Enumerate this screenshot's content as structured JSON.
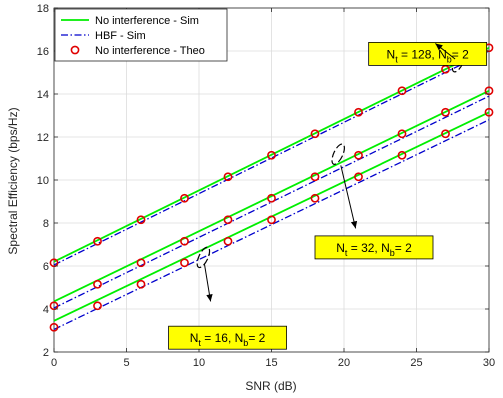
{
  "chart_data": {
    "type": "line",
    "xlabel": "SNR (dB)",
    "ylabel": "Spectral Efficiency (bps/Hz)",
    "xlim": [
      0,
      30
    ],
    "ylim": [
      2,
      18
    ],
    "xticks": [
      0,
      5,
      10,
      15,
      20,
      25,
      30
    ],
    "yticks": [
      2,
      4,
      6,
      8,
      10,
      12,
      14,
      16,
      18
    ],
    "grid": true,
    "legend": {
      "placement": "top-left",
      "entries": [
        {
          "label": "No interference - Sim",
          "color": "#00ee00",
          "style": "solid"
        },
        {
          "label": "HBF - Sim",
          "color": "#0000cc",
          "style": "dashdot"
        },
        {
          "label": "No interference - Theo",
          "color": "#e00000",
          "style": "circle"
        }
      ]
    },
    "groups": [
      {
        "nt": "128",
        "nb": "2",
        "sim": {
          "x": [
            0,
            30
          ],
          "y": [
            6.2,
            16.15
          ]
        },
        "hbf": {
          "x": [
            0,
            30
          ],
          "y": [
            6.05,
            16.0
          ]
        },
        "theo": {
          "x": [
            0,
            3,
            6,
            9,
            12,
            15,
            18,
            21,
            24,
            27,
            30
          ],
          "y": [
            6.15,
            7.15,
            8.15,
            9.15,
            10.15,
            11.15,
            12.15,
            13.15,
            14.15,
            15.15,
            16.15
          ]
        }
      },
      {
        "nt": "32",
        "nb": "2",
        "sim": {
          "x": [
            0,
            30
          ],
          "y": [
            4.35,
            14.15
          ]
        },
        "hbf": {
          "x": [
            0,
            30
          ],
          "y": [
            4.05,
            13.9
          ]
        },
        "theo": {
          "x": [
            0,
            3,
            6,
            9,
            12,
            15,
            18,
            21,
            24,
            27,
            30
          ],
          "y": [
            4.15,
            5.15,
            6.15,
            7.15,
            8.15,
            9.15,
            10.15,
            11.15,
            12.15,
            13.15,
            14.15
          ]
        }
      },
      {
        "nt": "16",
        "nb": "2",
        "sim": {
          "x": [
            0,
            30
          ],
          "y": [
            3.45,
            13.15
          ]
        },
        "hbf": {
          "x": [
            0,
            30
          ],
          "y": [
            3.05,
            12.8
          ]
        },
        "theo": {
          "x": [
            0,
            3,
            6,
            9,
            12,
            15,
            18,
            21,
            24,
            27,
            30
          ],
          "y": [
            3.15,
            4.15,
            5.15,
            6.15,
            7.15,
            8.15,
            9.15,
            10.15,
            11.15,
            12.15,
            13.15
          ]
        }
      }
    ],
    "annotations": [
      {
        "group": 0,
        "nt": "128",
        "nb": "2",
        "ellipse_at": [
          27.9,
          15.5
        ],
        "box_at": [
          21.7,
          16.4
        ],
        "arrow_to": [
          26.3,
          16.35
        ]
      },
      {
        "group": 1,
        "nt": "32",
        "nb": "2",
        "ellipse_at": [
          19.6,
          11.2
        ],
        "box_at": [
          18.0,
          7.4
        ],
        "arrow_to": [
          20.8,
          7.75
        ]
      },
      {
        "group": 2,
        "nt": "16",
        "nb": "2",
        "ellipse_at": [
          10.3,
          6.4
        ],
        "box_at": [
          7.9,
          3.2
        ],
        "arrow_to": [
          10.8,
          4.35
        ]
      }
    ]
  }
}
